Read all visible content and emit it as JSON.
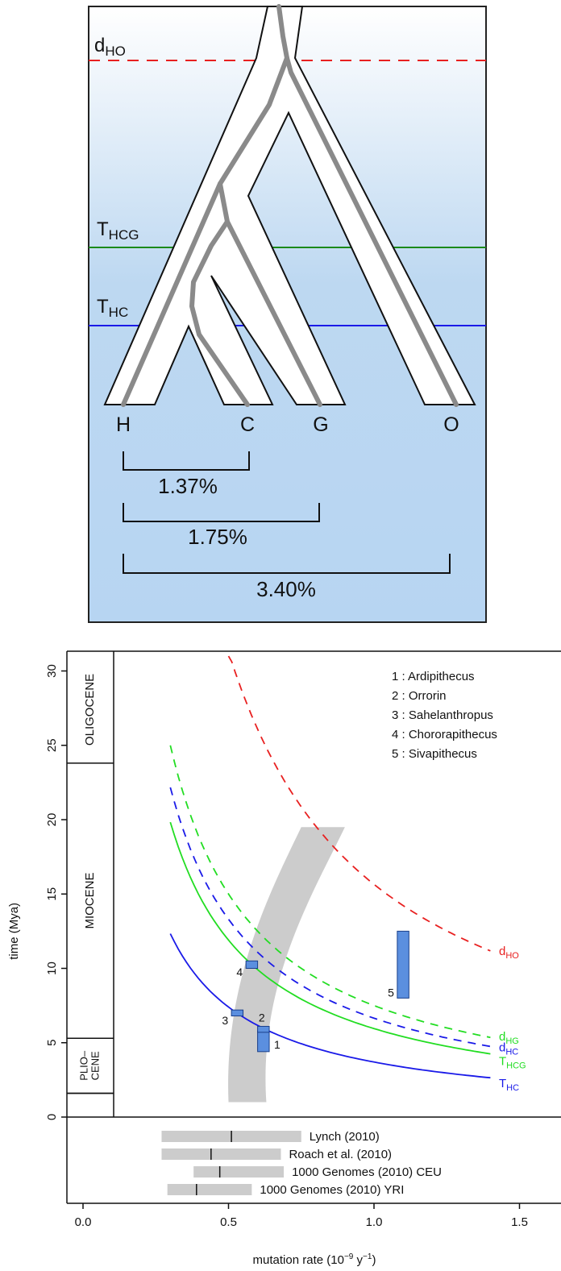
{
  "tree_panel": {
    "lines": [
      {
        "main": "d",
        "sub": "HO",
        "color": "#e82020",
        "style": "dashed"
      },
      {
        "main": "T",
        "sub": "HCG",
        "color": "#1a8a1a",
        "style": "solid"
      },
      {
        "main": "T",
        "sub": "HC",
        "color": "#1a1ae8",
        "style": "solid"
      }
    ],
    "tips": [
      "H",
      "C",
      "G",
      "O"
    ],
    "divergences": [
      "1.37%",
      "1.75%",
      "3.40%"
    ]
  },
  "chart_data": {
    "type": "line",
    "xlabel": "mutation rate (10",
    "xlabel_sup": "−9",
    "xlabel_mid": " y",
    "xlabel_sup2": "−1",
    "xlabel_end": ")",
    "ylabel": "time (Mya)",
    "xlim": [
      -0.12,
      1.6
    ],
    "ylim": [
      0,
      31
    ],
    "xticks": [
      "0.0",
      "0.5",
      "1.0",
      "1.5"
    ],
    "yticks": [
      "0",
      "5",
      "10",
      "15",
      "20",
      "25",
      "30"
    ],
    "epochs": [
      {
        "label": "OLIGOCENE",
        "lines": [
          "OLIGOCENE"
        ],
        "from": 23.8,
        "to": 31
      },
      {
        "label": "MIOCENE",
        "lines": [
          "MIOCENE"
        ],
        "from": 5.3,
        "to": 23.8
      },
      {
        "label": "PLIO–CENE",
        "lines": [
          "PLIO–",
          "CENE"
        ],
        "from": 1.6,
        "to": 5.3
      }
    ],
    "series": [
      {
        "name": "d",
        "sub": "HO",
        "color": "#e82020",
        "style": "dashed",
        "k": 15.65,
        "x_start": 0.5,
        "x_end": 1.4
      },
      {
        "name": "d",
        "sub": "HG",
        "color": "#22dd22",
        "style": "dashed",
        "k": 7.5,
        "x_start": 0.3,
        "x_end": 1.4
      },
      {
        "name": "d",
        "sub": "HC",
        "color": "#1a1ae8",
        "style": "dashed",
        "k": 6.65,
        "x_start": 0.3,
        "x_end": 1.4
      },
      {
        "name": "T",
        "sub": "HCG",
        "color": "#22dd22",
        "style": "solid",
        "k": 5.95,
        "x_start": 0.3,
        "x_end": 1.4
      },
      {
        "name": "T",
        "sub": "HC",
        "color": "#1a1ae8",
        "style": "solid",
        "k": 3.7,
        "x_start": 0.3,
        "x_end": 1.4
      }
    ],
    "fossils": [
      {
        "id": "1",
        "name": "Ardipithecus",
        "x0": 0.6,
        "x1": 0.64,
        "y0": 4.4,
        "y1": 5.8,
        "label_side": "right"
      },
      {
        "id": "2",
        "name": "Orrorin",
        "x0": 0.6,
        "x1": 0.64,
        "y0": 5.7,
        "y1": 6.1,
        "label_side": "top"
      },
      {
        "id": "3",
        "name": "Sahelanthropus",
        "x0": 0.51,
        "x1": 0.55,
        "y0": 6.8,
        "y1": 7.2,
        "label_side": "left"
      },
      {
        "id": "4",
        "name": "Chororapithecus",
        "x0": 0.56,
        "x1": 0.6,
        "y0": 10.0,
        "y1": 10.5,
        "label_side": "left"
      },
      {
        "id": "5",
        "name": "Sivapithecus",
        "x0": 1.08,
        "x1": 1.12,
        "y0": 8.0,
        "y1": 12.5,
        "label_side": "left"
      }
    ],
    "legend": [
      "1 :  Ardipithecus",
      "2 :  Orrorin",
      "3 :  Sahelanthropus",
      "4 :  Chororapithecus",
      "5 :  Sivapithecus"
    ],
    "band": {
      "bottom_x": [
        0.5,
        0.63
      ],
      "bottom_y": 1.0,
      "top_x": [
        0.75,
        0.9
      ],
      "top_y": 19.5
    },
    "estimates": [
      {
        "label": "Lynch (2010)",
        "low": 0.27,
        "high": 0.75,
        "point": 0.51
      },
      {
        "label": "Roach et al. (2010)",
        "low": 0.27,
        "high": 0.68,
        "point": 0.44
      },
      {
        "label": "1000 Genomes (2010) CEU",
        "low": 0.38,
        "high": 0.69,
        "point": 0.47
      },
      {
        "label": "1000 Genomes (2010) YRI",
        "low": 0.29,
        "high": 0.58,
        "point": 0.39
      }
    ]
  }
}
